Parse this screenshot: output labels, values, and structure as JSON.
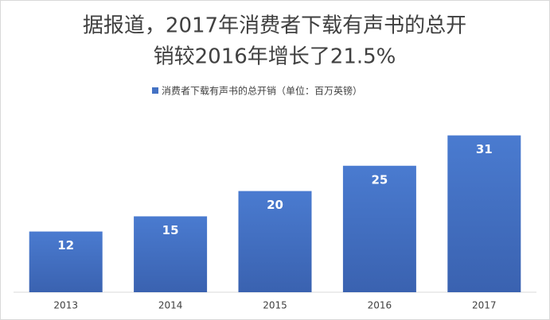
{
  "chart_data": {
    "type": "bar",
    "title": [
      "据报道，2017年消费者下载有声书的总开",
      "销较2016年增长了21.5%"
    ],
    "categories": [
      "2013",
      "2014",
      "2015",
      "2016",
      "2017"
    ],
    "series": [
      {
        "name": "消费者下载有声书的总开销（单位：百万英镑）",
        "color": "#4472c4",
        "values": [
          12,
          15,
          20,
          25,
          31
        ]
      }
    ],
    "legend": "top"
  }
}
